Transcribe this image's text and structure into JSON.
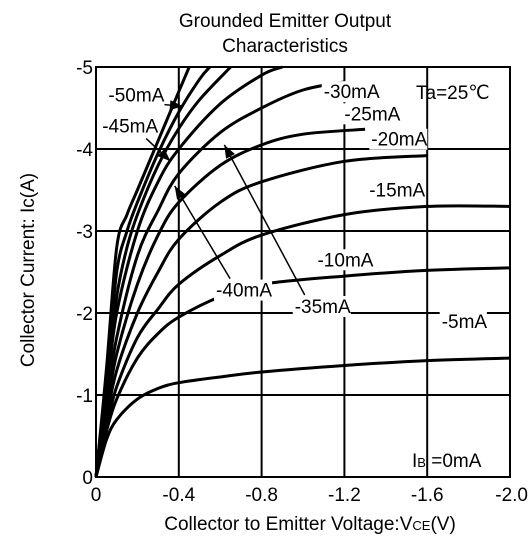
{
  "chart_data": {
    "type": "line",
    "title_line1": "Grounded Emitter Output",
    "title_line2": "Characteristics",
    "xlabel": {
      "main": "Collector  to Emitter Voltage:V",
      "sub": "CE",
      "tail": "(V)"
    },
    "ylabel": "Collector Current: Ic(A)",
    "xlim": [
      0,
      -2.0
    ],
    "ylim": [
      0,
      -5
    ],
    "xticks": [
      "0",
      "-0.4",
      "-0.8",
      "-1.2",
      "-1.6",
      "-2.0"
    ],
    "xtick_values": [
      0,
      -0.4,
      -0.8,
      -1.2,
      -1.6,
      -2.0
    ],
    "yticks": [
      "0",
      "-1",
      "-2",
      "-3",
      "-4",
      "-5"
    ],
    "ytick_values": [
      0,
      -1,
      -2,
      -3,
      -4,
      -5
    ],
    "grid": true,
    "ambient": "Ta=25℃",
    "ib_zero_label": {
      "main": "I",
      "sub": "B",
      "tail": " =0mA"
    },
    "series": [
      {
        "name": "-5mA",
        "x": [
          0,
          -0.05,
          -0.1,
          -0.2,
          -0.3,
          -0.4,
          -0.6,
          -0.8,
          -1.2,
          -1.6,
          -2.0
        ],
        "y": [
          0,
          -0.45,
          -0.7,
          -0.95,
          -1.08,
          -1.15,
          -1.22,
          -1.28,
          -1.36,
          -1.42,
          -1.45
        ]
      },
      {
        "name": "-10mA",
        "x": [
          0,
          -0.05,
          -0.1,
          -0.2,
          -0.3,
          -0.4,
          -0.6,
          -0.8,
          -1.2,
          -1.6,
          -2.0
        ],
        "y": [
          0,
          -0.55,
          -0.95,
          -1.45,
          -1.75,
          -1.95,
          -2.2,
          -2.35,
          -2.45,
          -2.52,
          -2.55
        ]
      },
      {
        "name": "-15mA",
        "x": [
          0,
          -0.05,
          -0.1,
          -0.2,
          -0.3,
          -0.4,
          -0.6,
          -0.8,
          -1.2,
          -1.6,
          -2.0
        ],
        "y": [
          0,
          -0.6,
          -1.1,
          -1.7,
          -2.05,
          -2.35,
          -2.7,
          -2.95,
          -3.2,
          -3.3,
          -3.3
        ]
      },
      {
        "name": "-20mA",
        "x": [
          0,
          -0.05,
          -0.1,
          -0.2,
          -0.3,
          -0.4,
          -0.6,
          -0.8,
          -1.2,
          -1.6
        ],
        "y": [
          0,
          -0.7,
          -1.3,
          -2.0,
          -2.5,
          -2.9,
          -3.35,
          -3.6,
          -3.85,
          -3.92
        ]
      },
      {
        "name": "-25mA",
        "x": [
          0,
          -0.05,
          -0.1,
          -0.2,
          -0.3,
          -0.4,
          -0.6,
          -0.8,
          -1.0,
          -1.3
        ],
        "y": [
          0,
          -0.8,
          -1.5,
          -2.35,
          -2.95,
          -3.35,
          -3.8,
          -4.05,
          -4.18,
          -4.24
        ]
      },
      {
        "name": "-30mA",
        "x": [
          0,
          -0.05,
          -0.1,
          -0.2,
          -0.3,
          -0.4,
          -0.6,
          -0.8,
          -1.0,
          -1.2
        ],
        "y": [
          0,
          -0.9,
          -1.7,
          -2.7,
          -3.25,
          -3.7,
          -4.2,
          -4.5,
          -4.72,
          -4.82
        ]
      },
      {
        "name": "-35mA",
        "x": [
          0,
          -0.05,
          -0.1,
          -0.2,
          -0.3,
          -0.4,
          -0.6,
          -0.8,
          -0.9
        ],
        "y": [
          0,
          -1.0,
          -2.0,
          -3.0,
          -3.6,
          -4.0,
          -4.55,
          -4.9,
          -5.0
        ]
      },
      {
        "name": "-40mA",
        "x": [
          0,
          -0.05,
          -0.1,
          -0.15,
          -0.2,
          -0.3,
          -0.4,
          -0.5,
          -0.65
        ],
        "y": [
          0,
          -1.1,
          -2.2,
          -2.8,
          -3.2,
          -3.8,
          -4.25,
          -4.6,
          -5.0
        ]
      },
      {
        "name": "-45mA",
        "x": [
          0,
          -0.05,
          -0.1,
          -0.15,
          -0.2,
          -0.3,
          -0.4,
          -0.5,
          -0.55
        ],
        "y": [
          0,
          -1.2,
          -2.5,
          -3.0,
          -3.35,
          -3.95,
          -4.45,
          -4.85,
          -5.0
        ]
      },
      {
        "name": "-50mA",
        "x": [
          0,
          -0.05,
          -0.1,
          -0.15,
          -0.2,
          -0.3,
          -0.4,
          -0.45
        ],
        "y": [
          0,
          -1.3,
          -2.8,
          -3.2,
          -3.5,
          -4.1,
          -4.7,
          -5.0
        ]
      }
    ],
    "annotations": [
      {
        "text": "-50mA",
        "x": -0.06,
        "y": -4.58,
        "arrow_to": [
          -0.42,
          -4.52
        ]
      },
      {
        "text": "-45mA",
        "x": -0.03,
        "y": -4.2,
        "arrow_to": [
          -0.36,
          -3.85
        ]
      },
      {
        "text": "-40mA",
        "x": -0.58,
        "y": -2.2,
        "arrow_to": [
          -0.38,
          -3.55
        ]
      },
      {
        "text": "-35mA",
        "x": -0.96,
        "y": -2.0,
        "arrow_to": [
          -0.62,
          -4.05
        ]
      },
      {
        "text": "-30mA",
        "x": -1.1,
        "y": -4.62
      },
      {
        "text": "-25mA",
        "x": -1.2,
        "y": -4.35
      },
      {
        "text": "-20mA",
        "x": -1.33,
        "y": -4.04
      },
      {
        "text": "-15mA",
        "x": -1.32,
        "y": -3.42
      },
      {
        "text": "-10mA",
        "x": -1.07,
        "y": -2.57
      },
      {
        "text": "-5mA",
        "x": -1.67,
        "y": -1.82
      }
    ]
  }
}
